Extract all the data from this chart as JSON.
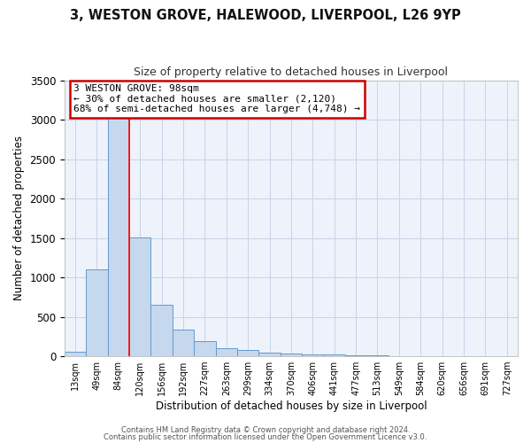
{
  "title1": "3, WESTON GROVE, HALEWOOD, LIVERPOOL, L26 9YP",
  "title2": "Size of property relative to detached houses in Liverpool",
  "xlabel": "Distribution of detached houses by size in Liverpool",
  "ylabel": "Number of detached properties",
  "annotation_line1": "3 WESTON GROVE: 98sqm",
  "annotation_line2": "← 30% of detached houses are smaller (2,120)",
  "annotation_line3": "68% of semi-detached houses are larger (4,748) →",
  "bar_labels": [
    "13sqm",
    "49sqm",
    "84sqm",
    "120sqm",
    "156sqm",
    "192sqm",
    "227sqm",
    "263sqm",
    "299sqm",
    "334sqm",
    "370sqm",
    "406sqm",
    "441sqm",
    "477sqm",
    "513sqm",
    "549sqm",
    "584sqm",
    "620sqm",
    "656sqm",
    "691sqm",
    "727sqm"
  ],
  "bar_values": [
    55,
    1100,
    3350,
    1510,
    650,
    340,
    195,
    105,
    75,
    45,
    30,
    25,
    20,
    15,
    8,
    6,
    5,
    4,
    3,
    2,
    1
  ],
  "bar_color": "#c5d8ed",
  "bar_edge_color": "#6699cc",
  "red_line_x": 2.5,
  "ylim": [
    0,
    3500
  ],
  "yticks": [
    0,
    500,
    1000,
    1500,
    2000,
    2500,
    3000,
    3500
  ],
  "grid_color": "#c8d4e8",
  "bg_color": "#eef2fa",
  "annotation_box_color": "#ffffff",
  "annotation_box_edge": "#cc0000",
  "footer1": "Contains HM Land Registry data © Crown copyright and database right 2024.",
  "footer2": "Contains public sector information licensed under the Open Government Licence v3.0."
}
